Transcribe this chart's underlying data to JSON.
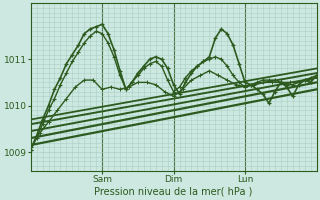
{
  "xlabel": "Pression niveau de la mer( hPa )",
  "ylim": [
    1008.6,
    1012.2
  ],
  "yticks": [
    1009,
    1010,
    1011
  ],
  "xlim": [
    0,
    96
  ],
  "xtick_positions": [
    24,
    48,
    72
  ],
  "xtick_labels": [
    "Sam",
    "Dim",
    "Lun"
  ],
  "bg_color": "#cce8e0",
  "line_color": "#2d5a1e",
  "grid_color": "#aacfc4",
  "vline_positions": [
    24,
    48,
    72
  ],
  "smooth_lines": [
    {
      "x": [
        0,
        96
      ],
      "y": [
        1009.15,
        1010.35
      ],
      "marker": false,
      "lw": 1.6
    },
    {
      "x": [
        0,
        96
      ],
      "y": [
        1009.3,
        1010.5
      ],
      "marker": false,
      "lw": 1.6
    },
    {
      "x": [
        0,
        96
      ],
      "y": [
        1009.45,
        1010.6
      ],
      "marker": false,
      "lw": 1.4
    },
    {
      "x": [
        0,
        96
      ],
      "y": [
        1009.6,
        1010.7
      ],
      "marker": false,
      "lw": 1.4
    },
    {
      "x": [
        0,
        96
      ],
      "y": [
        1009.7,
        1010.8
      ],
      "marker": false,
      "lw": 1.3
    }
  ],
  "series_main": {
    "x": [
      0,
      2,
      4,
      6,
      8,
      10,
      12,
      14,
      16,
      18,
      20,
      22,
      24,
      26,
      28,
      30,
      32,
      34,
      36,
      38,
      40,
      42,
      44,
      46,
      48,
      50,
      52,
      54,
      56,
      58,
      60,
      62,
      64,
      66,
      68,
      70,
      72,
      74,
      76,
      78,
      80,
      82,
      84,
      86,
      88,
      90,
      92,
      94,
      96
    ],
    "y": [
      1009.05,
      1009.35,
      1009.7,
      1010.0,
      1010.35,
      1010.6,
      1010.9,
      1011.1,
      1011.3,
      1011.55,
      1011.65,
      1011.7,
      1011.75,
      1011.55,
      1011.2,
      1010.75,
      1010.35,
      1010.5,
      1010.7,
      1010.85,
      1011.0,
      1011.05,
      1011.0,
      1010.8,
      1010.45,
      1010.25,
      1010.5,
      1010.7,
      1010.85,
      1010.95,
      1011.05,
      1011.45,
      1011.65,
      1011.55,
      1011.3,
      1010.9,
      1010.5,
      1010.45,
      1010.35,
      1010.25,
      1010.05,
      1010.3,
      1010.5,
      1010.4,
      1010.2,
      1010.45,
      1010.55,
      1010.5,
      1010.65
    ],
    "lw": 1.2
  },
  "series_a": {
    "x": [
      0,
      2,
      4,
      6,
      8,
      10,
      12,
      14,
      16,
      18,
      20,
      22,
      24,
      26,
      28,
      30,
      32,
      34,
      36,
      38,
      40,
      42,
      44,
      46,
      48,
      50,
      52,
      54,
      56,
      58,
      60,
      62,
      64,
      66,
      68,
      70,
      72,
      74,
      76,
      78,
      80,
      82,
      84,
      86,
      88,
      90,
      92,
      94,
      96
    ],
    "y": [
      1009.05,
      1009.3,
      1009.6,
      1009.9,
      1010.15,
      1010.45,
      1010.7,
      1010.95,
      1011.15,
      1011.35,
      1011.5,
      1011.6,
      1011.55,
      1011.35,
      1011.05,
      1010.65,
      1010.35,
      1010.5,
      1010.65,
      1010.8,
      1010.9,
      1010.95,
      1010.85,
      1010.55,
      1010.3,
      1010.4,
      1010.6,
      1010.75,
      1010.85,
      1010.95,
      1011.0,
      1011.05,
      1011.0,
      1010.85,
      1010.65,
      1010.5,
      1010.4,
      1010.45,
      1010.5,
      1010.55,
      1010.55,
      1010.55,
      1010.5,
      1010.45,
      1010.45,
      1010.5,
      1010.55,
      1010.6,
      1010.65
    ],
    "lw": 1.0
  },
  "series_b": {
    "x": [
      0,
      3,
      6,
      9,
      12,
      15,
      18,
      21,
      24,
      27,
      30,
      33,
      36,
      39,
      42,
      45,
      48,
      51,
      54,
      57,
      60,
      63,
      66,
      69,
      72,
      75,
      78,
      81,
      84,
      87,
      90,
      93,
      96
    ],
    "y": [
      1009.1,
      1009.4,
      1009.65,
      1009.9,
      1010.15,
      1010.4,
      1010.55,
      1010.55,
      1010.35,
      1010.4,
      1010.35,
      1010.4,
      1010.5,
      1010.5,
      1010.45,
      1010.3,
      1010.2,
      1010.35,
      1010.55,
      1010.65,
      1010.75,
      1010.65,
      1010.55,
      1010.45,
      1010.4,
      1010.45,
      1010.5,
      1010.5,
      1010.5,
      1010.5,
      1010.5,
      1010.55,
      1010.6
    ],
    "lw": 1.0
  }
}
